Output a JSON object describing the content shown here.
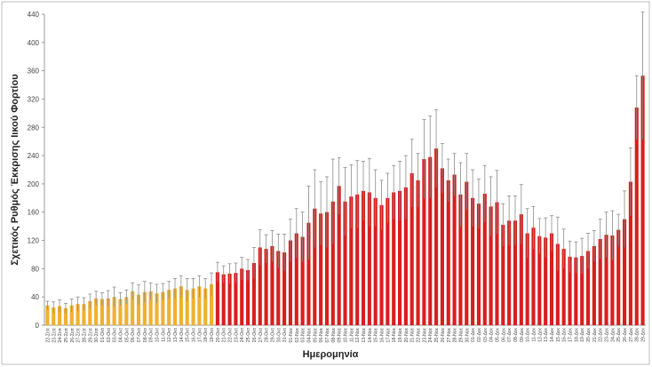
{
  "chart_data": {
    "type": "bar",
    "y_label": "Σχετικός Ρυθμός Έκκρισης Ιικού Φορτίου",
    "x_label": "Ημερομηνία",
    "ylim": [
      0,
      440
    ],
    "yticks": [
      0,
      40,
      80,
      120,
      160,
      200,
      240,
      280,
      320,
      360,
      400,
      440
    ],
    "error_color": "#8c8c8c",
    "categories": [
      "22-Σεπ",
      "23-Σεπ",
      "24-Σεπ",
      "25-Σεπ",
      "26-Σεπ",
      "27-Σεπ",
      "28-Σεπ",
      "29-Σεπ",
      "30-Σεπ",
      "01-Οκτ",
      "02-Οκτ",
      "03-Οκτ",
      "04-Οκτ",
      "05-Οκτ",
      "06-Οκτ",
      "07-Οκτ",
      "08-Οκτ",
      "09-Οκτ",
      "10-Οκτ",
      "11-Οκτ",
      "12-Οκτ",
      "13-Οκτ",
      "14-Οκτ",
      "15-Οκτ",
      "16-Οκτ",
      "17-Οκτ",
      "18-Οκτ",
      "19-Οκτ",
      "20-Οκτ",
      "21-Οκτ",
      "22-Οκτ",
      "23-Οκτ",
      "24-Οκτ",
      "25-Οκτ",
      "26-Οκτ",
      "27-Οκτ",
      "28-Οκτ",
      "29-Οκτ",
      "30-Οκτ",
      "31-Οκτ",
      "01-Νοε",
      "02-Νοε",
      "03-Νοε",
      "04-Νοε",
      "05-Νοε",
      "06-Νοε",
      "07-Νοε",
      "08-Νοε",
      "09-Νοε",
      "10-Νοε",
      "11-Νοε",
      "12-Νοε",
      "13-Νοε",
      "14-Νοε",
      "15-Νοε",
      "16-Νοε",
      "17-Νοε",
      "18-Νοε",
      "19-Νοε",
      "20-Νοε",
      "21-Νοε",
      "22-Νοε",
      "23-Νοε",
      "24-Νοε",
      "25-Νοε",
      "26-Νοε",
      "27-Νοε",
      "28-Νοε",
      "29-Νοε",
      "30-Νοε",
      "01-Δεκ",
      "02-Δεκ",
      "03-Δεκ",
      "04-Δεκ",
      "05-Δεκ",
      "06-Δεκ",
      "07-Δεκ",
      "08-Δεκ",
      "09-Δεκ",
      "10-Δεκ",
      "11-Δεκ",
      "12-Δεκ",
      "13-Δεκ",
      "14-Δεκ",
      "15-Δεκ",
      "16-Δεκ",
      "17-Δεκ",
      "18-Δεκ",
      "19-Δεκ",
      "20-Δεκ",
      "21-Δεκ",
      "22-Δεκ",
      "23-Δεκ",
      "24-Δεκ",
      "25-Δεκ",
      "26-Δεκ",
      "27-Δεκ",
      "28-Δεκ",
      "29-Δεκ"
    ],
    "series": [
      {
        "color": "#f0b030",
        "values": [
          28,
          25,
          27,
          24,
          28,
          30,
          30,
          34,
          38,
          37,
          38,
          40,
          37,
          40,
          48,
          43,
          47,
          48,
          45,
          47,
          50,
          52,
          55,
          50,
          52,
          55,
          52,
          58,
          null,
          null,
          null,
          null,
          null,
          null,
          null,
          null,
          null,
          null,
          null,
          null,
          null,
          null,
          null,
          null,
          null,
          null,
          null,
          null,
          null,
          null,
          null,
          null,
          null,
          null,
          null,
          null,
          null,
          null,
          null,
          null,
          null,
          null,
          null,
          null,
          null,
          null,
          null,
          null,
          null,
          null,
          null,
          null,
          null,
          null,
          null,
          null,
          null,
          null,
          null,
          null,
          null,
          null,
          null,
          null,
          null,
          null,
          null,
          null,
          null,
          null,
          null,
          null,
          null,
          null,
          null,
          null,
          null,
          null,
          null
        ],
        "errors": [
          6,
          8,
          9,
          7,
          9,
          10,
          9,
          10,
          10,
          9,
          11,
          14,
          9,
          10,
          12,
          14,
          15,
          12,
          13,
          12,
          12,
          14,
          15,
          16,
          14,
          15,
          14,
          16,
          null,
          null,
          null,
          null,
          null,
          null,
          null,
          null,
          null,
          null,
          null,
          null,
          null,
          null,
          null,
          null,
          null,
          null,
          null,
          null,
          null,
          null,
          null,
          null,
          null,
          null,
          null,
          null,
          null,
          null,
          null,
          null,
          null,
          null,
          null,
          null,
          null,
          null,
          null,
          null,
          null,
          null,
          null,
          null,
          null,
          null,
          null,
          null,
          null,
          null,
          null,
          null,
          null,
          null,
          null,
          null,
          null,
          null,
          null,
          null,
          null,
          null,
          null,
          null,
          null,
          null,
          null,
          null,
          null,
          null,
          null
        ]
      },
      {
        "color": "#d81e1e",
        "values": [
          null,
          null,
          null,
          null,
          null,
          null,
          null,
          null,
          null,
          null,
          null,
          null,
          null,
          null,
          null,
          null,
          null,
          null,
          null,
          null,
          null,
          null,
          null,
          null,
          null,
          null,
          null,
          null,
          75,
          72,
          73,
          74,
          80,
          78,
          88,
          110,
          108,
          112,
          105,
          103,
          120,
          130,
          125,
          145,
          165,
          158,
          160,
          175,
          197,
          175,
          182,
          185,
          190,
          188,
          180,
          170,
          180,
          188,
          190,
          195,
          215,
          205,
          235,
          238,
          250,
          222,
          205,
          213,
          185,
          203,
          180,
          172,
          186,
          168,
          174,
          142,
          148,
          148,
          157,
          130,
          138,
          126,
          124,
          130,
          115,
          108,
          97,
          96,
          98,
          105,
          112,
          122,
          128,
          127,
          135,
          150,
          203,
          308,
          353
        ],
        "errors": [
          null,
          null,
          null,
          null,
          null,
          null,
          null,
          null,
          null,
          null,
          null,
          null,
          null,
          null,
          null,
          null,
          null,
          null,
          null,
          null,
          null,
          null,
          null,
          null,
          null,
          null,
          null,
          null,
          14,
          12,
          14,
          14,
          16,
          15,
          22,
          25,
          20,
          22,
          24,
          26,
          30,
          35,
          35,
          52,
          55,
          45,
          50,
          60,
          40,
          48,
          45,
          48,
          42,
          48,
          40,
          35,
          35,
          38,
          42,
          45,
          48,
          38,
          56,
          58,
          55,
          35,
          30,
          30,
          45,
          40,
          40,
          35,
          40,
          42,
          45,
          30,
          35,
          35,
          42,
          35,
          30,
          25,
          28,
          25,
          38,
          28,
          22,
          22,
          25,
          25,
          22,
          28,
          32,
          35,
          22,
          40,
          48,
          45,
          90
        ]
      }
    ]
  }
}
